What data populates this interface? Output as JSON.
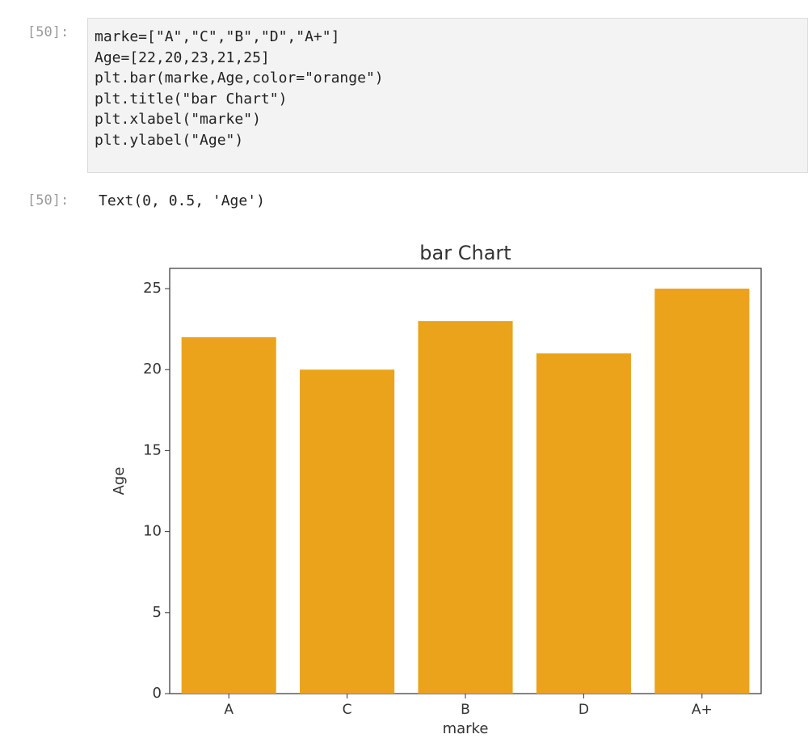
{
  "notebook": {
    "input_prompt": "[50]:",
    "code": [
      "marke=[\"A\",\"C\",\"B\",\"D\",\"A+\"]",
      "Age=[22,20,23,21,25]",
      "plt.bar(marke,Age,color=\"orange\")",
      "plt.title(\"bar Chart\")",
      "plt.xlabel(\"marke\")",
      "plt.ylabel(\"Age\")"
    ],
    "output_prompt": "[50]:",
    "output_text": "Text(0, 0.5, 'Age')"
  },
  "chart_data": {
    "type": "bar",
    "title": "bar Chart",
    "xlabel": "marke",
    "ylabel": "Age",
    "categories": [
      "A",
      "C",
      "B",
      "D",
      "A+"
    ],
    "values": [
      22,
      20,
      23,
      21,
      25
    ],
    "color": "#eba31c",
    "ylim": [
      0,
      26.25
    ],
    "yticks": [
      0,
      5,
      10,
      15,
      20,
      25
    ]
  }
}
